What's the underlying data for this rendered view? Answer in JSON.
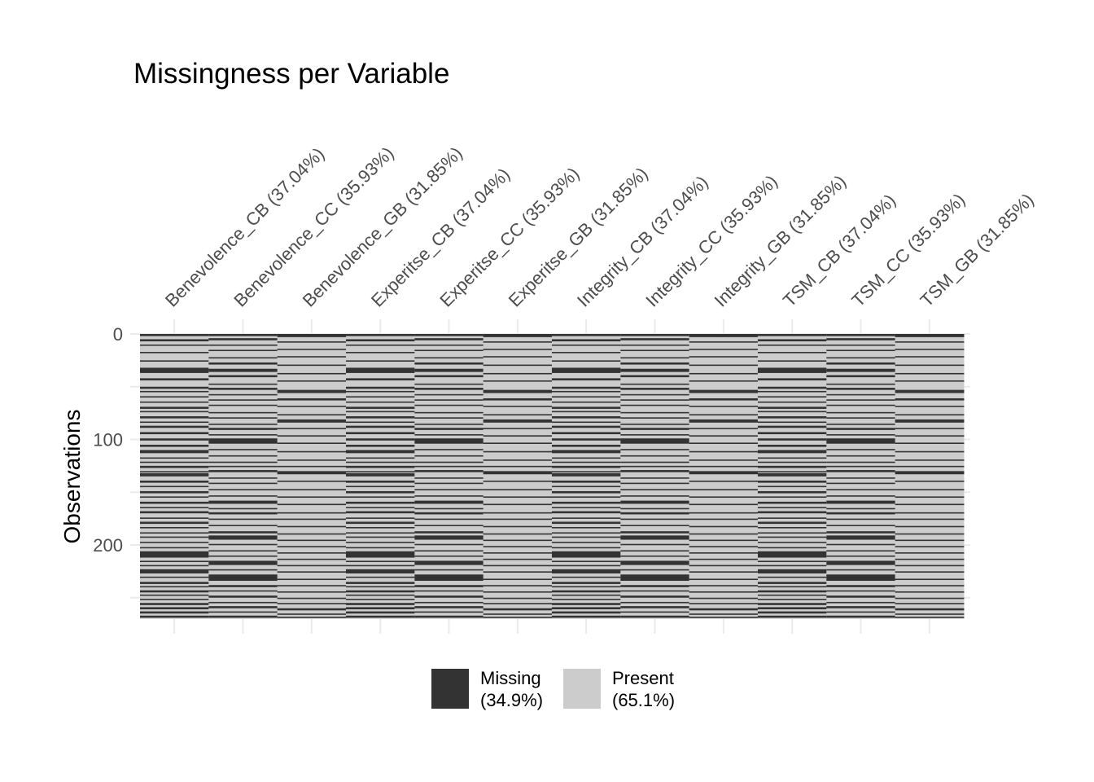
{
  "chart_data": {
    "type": "heatmap",
    "title": "Missingness per Variable",
    "ylabel": "Observations",
    "xlabel": "",
    "y_ticks": [
      0,
      100,
      200
    ],
    "n_observations": 270,
    "columns": [
      {
        "label": "Benevolence_CB (37.04%)",
        "pct_missing": 37.04,
        "pattern": "CB"
      },
      {
        "label": "Benevolence_CC (35.93%)",
        "pct_missing": 35.93,
        "pattern": "CC"
      },
      {
        "label": "Benevolence_GB (31.85%)",
        "pct_missing": 31.85,
        "pattern": "GB"
      },
      {
        "label": "Experitse_CB (37.04%)",
        "pct_missing": 37.04,
        "pattern": "CB"
      },
      {
        "label": "Experitse_CC (35.93%)",
        "pct_missing": 35.93,
        "pattern": "CC"
      },
      {
        "label": "Experitse_GB (31.85%)",
        "pct_missing": 31.85,
        "pattern": "GB"
      },
      {
        "label": "Integrity_CB (37.04%)",
        "pct_missing": 37.04,
        "pattern": "CB"
      },
      {
        "label": "Integrity_CC (35.93%)",
        "pct_missing": 35.93,
        "pattern": "CC"
      },
      {
        "label": "Integrity_GB (31.85%)",
        "pct_missing": 31.85,
        "pattern": "GB"
      },
      {
        "label": "TSM_CB (37.04%)",
        "pct_missing": 37.04,
        "pattern": "CB"
      },
      {
        "label": "TSM_CC (35.93%)",
        "pct_missing": 35.93,
        "pattern": "CC"
      },
      {
        "label": "TSM_GB (31.85%)",
        "pct_missing": 31.85,
        "pattern": "GB"
      }
    ],
    "missing_rows": {
      "CB": [
        [
          1,
          2
        ],
        [
          6,
          7
        ],
        [
          11,
          11
        ],
        [
          18,
          18
        ],
        [
          26,
          26
        ],
        [
          33,
          37
        ],
        [
          43,
          44
        ],
        [
          51,
          52
        ],
        [
          55,
          55
        ],
        [
          60,
          60
        ],
        [
          65,
          65
        ],
        [
          70,
          71
        ],
        [
          74,
          74
        ],
        [
          79,
          80
        ],
        [
          84,
          84
        ],
        [
          88,
          89
        ],
        [
          94,
          95
        ],
        [
          100,
          101
        ],
        [
          106,
          107
        ],
        [
          111,
          113
        ],
        [
          118,
          118
        ],
        [
          122,
          122
        ],
        [
          126,
          127
        ],
        [
          131,
          131
        ],
        [
          133,
          135
        ],
        [
          140,
          141
        ],
        [
          145,
          145
        ],
        [
          150,
          151
        ],
        [
          155,
          155
        ],
        [
          160,
          161
        ],
        [
          165,
          165
        ],
        [
          169,
          170
        ],
        [
          175,
          175
        ],
        [
          179,
          180
        ],
        [
          184,
          184
        ],
        [
          189,
          189
        ],
        [
          193,
          193
        ],
        [
          198,
          198
        ],
        [
          203,
          203
        ],
        [
          207,
          212
        ],
        [
          216,
          216
        ],
        [
          220,
          220
        ],
        [
          224,
          227
        ],
        [
          231,
          231
        ],
        [
          236,
          237
        ],
        [
          240,
          240
        ],
        [
          244,
          245
        ],
        [
          248,
          248
        ],
        [
          252,
          252
        ],
        [
          256,
          257
        ],
        [
          260,
          261
        ],
        [
          264,
          265
        ],
        [
          268,
          269
        ]
      ],
      "CC": [
        [
          1,
          2
        ],
        [
          5,
          6
        ],
        [
          11,
          11
        ],
        [
          16,
          16
        ],
        [
          23,
          23
        ],
        [
          28,
          29
        ],
        [
          34,
          36
        ],
        [
          40,
          41
        ],
        [
          48,
          48
        ],
        [
          52,
          53
        ],
        [
          58,
          58
        ],
        [
          63,
          63
        ],
        [
          68,
          68
        ],
        [
          75,
          75
        ],
        [
          80,
          80
        ],
        [
          86,
          86
        ],
        [
          90,
          91
        ],
        [
          96,
          96
        ],
        [
          100,
          104
        ],
        [
          110,
          110
        ],
        [
          116,
          116
        ],
        [
          122,
          122
        ],
        [
          126,
          126
        ],
        [
          130,
          131
        ],
        [
          137,
          137
        ],
        [
          142,
          142
        ],
        [
          148,
          148
        ],
        [
          154,
          154
        ],
        [
          159,
          161
        ],
        [
          166,
          166
        ],
        [
          170,
          171
        ],
        [
          176,
          176
        ],
        [
          182,
          182
        ],
        [
          188,
          189
        ],
        [
          192,
          195
        ],
        [
          200,
          200
        ],
        [
          206,
          206
        ],
        [
          211,
          211
        ],
        [
          216,
          219
        ],
        [
          224,
          224
        ],
        [
          229,
          234
        ],
        [
          239,
          240
        ],
        [
          244,
          244
        ],
        [
          249,
          250
        ],
        [
          255,
          255
        ],
        [
          259,
          260
        ],
        [
          264,
          264
        ],
        [
          268,
          269
        ]
      ],
      "GB": [
        [
          1,
          3
        ],
        [
          8,
          8
        ],
        [
          15,
          15
        ],
        [
          22,
          22
        ],
        [
          30,
          30
        ],
        [
          38,
          38
        ],
        [
          45,
          45
        ],
        [
          54,
          56
        ],
        [
          62,
          63
        ],
        [
          69,
          69
        ],
        [
          77,
          77
        ],
        [
          82,
          84
        ],
        [
          90,
          90
        ],
        [
          97,
          97
        ],
        [
          104,
          104
        ],
        [
          112,
          112
        ],
        [
          120,
          120
        ],
        [
          126,
          126
        ],
        [
          131,
          133
        ],
        [
          140,
          140
        ],
        [
          148,
          148
        ],
        [
          155,
          155
        ],
        [
          162,
          162
        ],
        [
          170,
          170
        ],
        [
          176,
          176
        ],
        [
          183,
          183
        ],
        [
          190,
          190
        ],
        [
          196,
          196
        ],
        [
          202,
          202
        ],
        [
          208,
          208
        ],
        [
          214,
          214
        ],
        [
          220,
          220
        ],
        [
          226,
          226
        ],
        [
          233,
          233
        ],
        [
          239,
          239
        ],
        [
          245,
          245
        ],
        [
          251,
          251
        ],
        [
          256,
          256
        ],
        [
          261,
          262
        ],
        [
          266,
          266
        ],
        [
          269,
          269
        ]
      ]
    },
    "legend": [
      {
        "label": "Missing\n(34.9%)",
        "line1": "Missing",
        "line2": "(34.9%)",
        "color": "#333333"
      },
      {
        "label": "Present\n(65.1%)",
        "line1": "Present",
        "line2": "(65.1%)",
        "color": "#cccccc"
      }
    ],
    "colors": {
      "missing": "#333333",
      "present": "#cccccc",
      "grid": "#ebebeb",
      "tick_text": "#4d4d4d"
    },
    "grid": true,
    "legend_position": "bottom"
  }
}
